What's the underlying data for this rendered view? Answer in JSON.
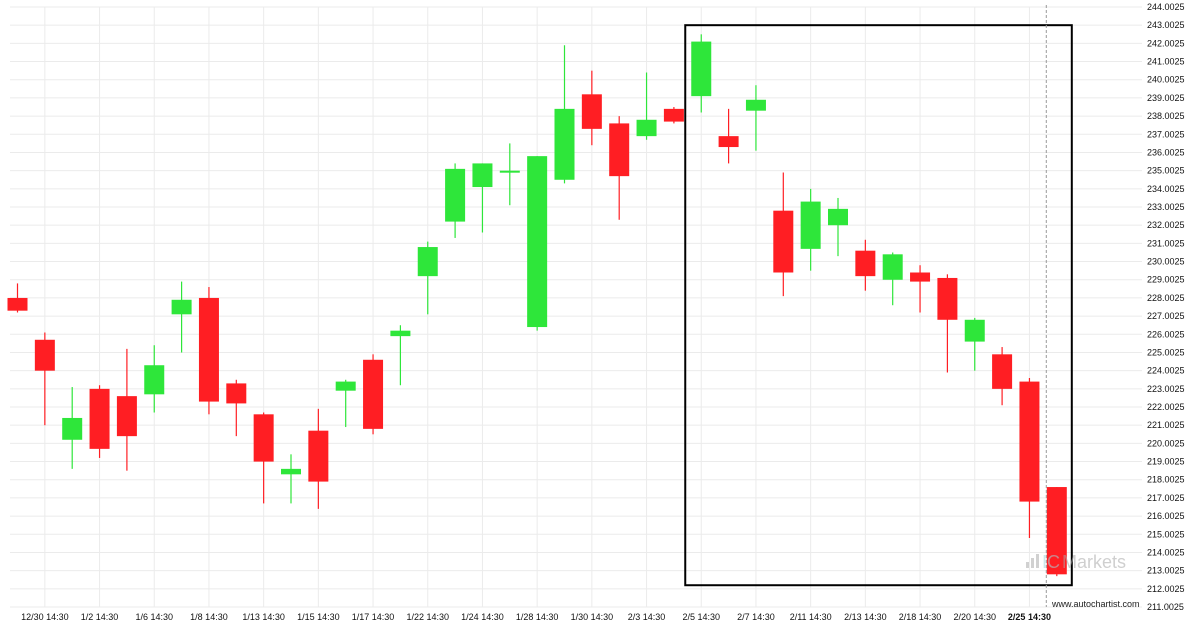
{
  "chart_data": {
    "type": "candlestick",
    "ylim": [
      211.0025,
      244.0025
    ],
    "y_ticks": [
      "244.0025",
      "243.0025",
      "242.0025",
      "241.0025",
      "240.0025",
      "239.0025",
      "238.0025",
      "237.0025",
      "236.0025",
      "235.0025",
      "234.0025",
      "233.0025",
      "232.0025",
      "231.0025",
      "230.0025",
      "229.0025",
      "228.0025",
      "227.0025",
      "226.0025",
      "225.0025",
      "224.0025",
      "223.0025",
      "222.0025",
      "221.0025",
      "220.0025",
      "219.0025",
      "218.0025",
      "217.0025",
      "216.0025",
      "215.0025",
      "214.0025",
      "213.0025",
      "212.0025",
      "211.0025"
    ],
    "x_ticks": [
      {
        "label": "12/30 14:30",
        "index": 1
      },
      {
        "label": "1/2 14:30",
        "index": 3
      },
      {
        "label": "1/6 14:30",
        "index": 5
      },
      {
        "label": "1/8 14:30",
        "index": 7
      },
      {
        "label": "1/13 14:30",
        "index": 9
      },
      {
        "label": "1/15 14:30",
        "index": 11
      },
      {
        "label": "1/17 14:30",
        "index": 13
      },
      {
        "label": "1/22 14:30",
        "index": 15
      },
      {
        "label": "1/24 14:30",
        "index": 17
      },
      {
        "label": "1/28 14:30",
        "index": 19
      },
      {
        "label": "1/30 14:30",
        "index": 21
      },
      {
        "label": "2/3 14:30",
        "index": 23
      },
      {
        "label": "2/5 14:30",
        "index": 25
      },
      {
        "label": "2/7 14:30",
        "index": 27
      },
      {
        "label": "2/11 14:30",
        "index": 29
      },
      {
        "label": "2/13 14:30",
        "index": 31
      },
      {
        "label": "2/18 14:30",
        "index": 33
      },
      {
        "label": "2/20 14:30",
        "index": 35
      },
      {
        "label": "2/25 14:30",
        "index": 37,
        "bold": true
      }
    ],
    "candles": [
      {
        "o": 228.0,
        "h": 228.8,
        "l": 227.2,
        "c": 227.3
      },
      {
        "o": 225.7,
        "h": 226.1,
        "l": 221.0,
        "c": 224.0
      },
      {
        "o": 220.2,
        "h": 223.1,
        "l": 218.6,
        "c": 221.4
      },
      {
        "o": 223.0,
        "h": 223.2,
        "l": 219.2,
        "c": 219.7
      },
      {
        "o": 222.6,
        "h": 225.2,
        "l": 218.5,
        "c": 220.4
      },
      {
        "o": 222.7,
        "h": 225.4,
        "l": 221.7,
        "c": 224.3
      },
      {
        "o": 227.1,
        "h": 228.9,
        "l": 225.0,
        "c": 227.9
      },
      {
        "o": 228.0,
        "h": 228.6,
        "l": 221.6,
        "c": 222.3
      },
      {
        "o": 223.3,
        "h": 223.5,
        "l": 220.4,
        "c": 222.2
      },
      {
        "o": 221.6,
        "h": 221.7,
        "l": 216.7,
        "c": 219.0
      },
      {
        "o": 218.3,
        "h": 219.4,
        "l": 216.7,
        "c": 218.6
      },
      {
        "o": 220.7,
        "h": 221.9,
        "l": 216.4,
        "c": 217.9
      },
      {
        "o": 222.9,
        "h": 223.5,
        "l": 220.9,
        "c": 223.4
      },
      {
        "o": 224.6,
        "h": 224.9,
        "l": 220.5,
        "c": 220.8
      },
      {
        "o": 225.9,
        "h": 226.5,
        "l": 223.2,
        "c": 226.2
      },
      {
        "o": 229.2,
        "h": 231.1,
        "l": 227.1,
        "c": 230.8
      },
      {
        "o": 232.2,
        "h": 235.4,
        "l": 231.3,
        "c": 235.1
      },
      {
        "o": 234.1,
        "h": 235.4,
        "l": 231.6,
        "c": 235.4
      },
      {
        "o": 235.0,
        "h": 236.5,
        "l": 233.1,
        "c": 235.0
      },
      {
        "o": 226.4,
        "h": 235.8,
        "l": 226.2,
        "c": 235.8
      },
      {
        "o": 234.5,
        "h": 241.9,
        "l": 234.3,
        "c": 238.4
      },
      {
        "o": 239.2,
        "h": 240.5,
        "l": 236.4,
        "c": 237.3
      },
      {
        "o": 237.6,
        "h": 238.0,
        "l": 232.3,
        "c": 234.7
      },
      {
        "o": 236.9,
        "h": 240.4,
        "l": 236.7,
        "c": 237.8
      },
      {
        "o": 238.4,
        "h": 238.5,
        "l": 237.6,
        "c": 237.7
      },
      {
        "o": 239.1,
        "h": 242.5,
        "l": 238.2,
        "c": 242.1
      },
      {
        "o": 236.9,
        "h": 238.4,
        "l": 235.4,
        "c": 236.3
      },
      {
        "o": 238.3,
        "h": 239.7,
        "l": 236.1,
        "c": 238.9
      },
      {
        "o": 232.8,
        "h": 234.9,
        "l": 228.1,
        "c": 229.4
      },
      {
        "o": 230.7,
        "h": 234.0,
        "l": 229.5,
        "c": 233.3
      },
      {
        "o": 232.0,
        "h": 233.5,
        "l": 230.3,
        "c": 232.9
      },
      {
        "o": 230.6,
        "h": 231.2,
        "l": 228.4,
        "c": 229.2
      },
      {
        "o": 229.0,
        "h": 230.5,
        "l": 227.6,
        "c": 230.4
      },
      {
        "o": 229.4,
        "h": 229.8,
        "l": 227.2,
        "c": 228.9
      },
      {
        "o": 229.1,
        "h": 229.3,
        "l": 223.9,
        "c": 226.8
      },
      {
        "o": 225.6,
        "h": 226.9,
        "l": 224.0,
        "c": 226.8
      },
      {
        "o": 224.9,
        "h": 225.3,
        "l": 222.1,
        "c": 223.0
      },
      {
        "o": 223.4,
        "h": 223.6,
        "l": 214.8,
        "c": 216.8
      },
      {
        "o": 217.6,
        "h": 217.6,
        "l": 212.7,
        "c": 212.8
      }
    ],
    "highlight_range": {
      "from_index": 25,
      "to_index": 38,
      "top": 243.0025,
      "bottom": 212.2
    },
    "current_marker_index": 38,
    "colors": {
      "up": "#2ee63a",
      "down": "#ff1e23",
      "grid": "#ebebeb",
      "box": "#000000",
      "marker": "#999999"
    }
  },
  "watermark": {
    "brand_prefix": "IC",
    "brand_suffix": "Markets",
    "site": "www.autochartist.com"
  }
}
